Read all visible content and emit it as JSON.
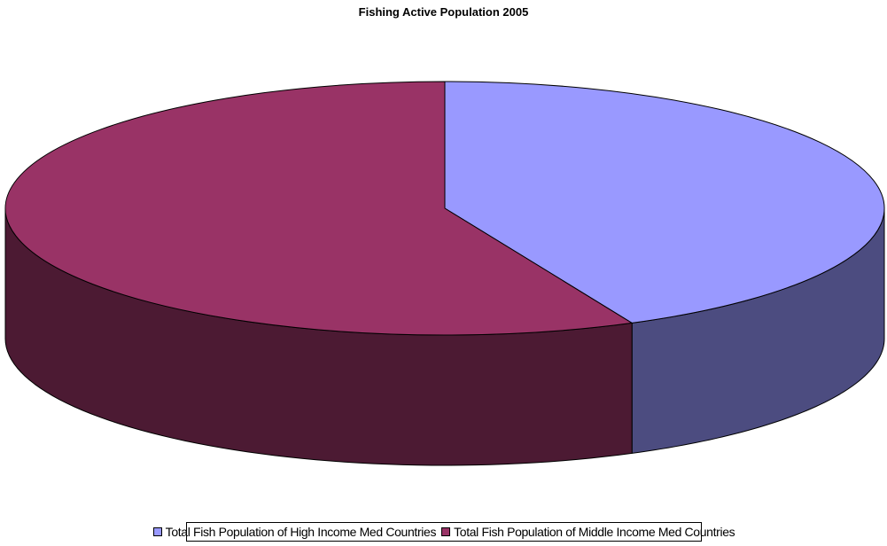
{
  "chart_data": {
    "type": "pie",
    "title": "Fishing Active Population 2005",
    "series": [
      {
        "name": "Total Fish Population of High Income Med Countries",
        "value": 43,
        "color": "#9999ff",
        "side_color": "#4c4c80"
      },
      {
        "name": "Total Fish Population of Middle Income Med Countries",
        "value": 57,
        "color": "#993366",
        "side_color": "#4c1a33"
      }
    ],
    "legend_position": "bottom",
    "style": "3d"
  }
}
